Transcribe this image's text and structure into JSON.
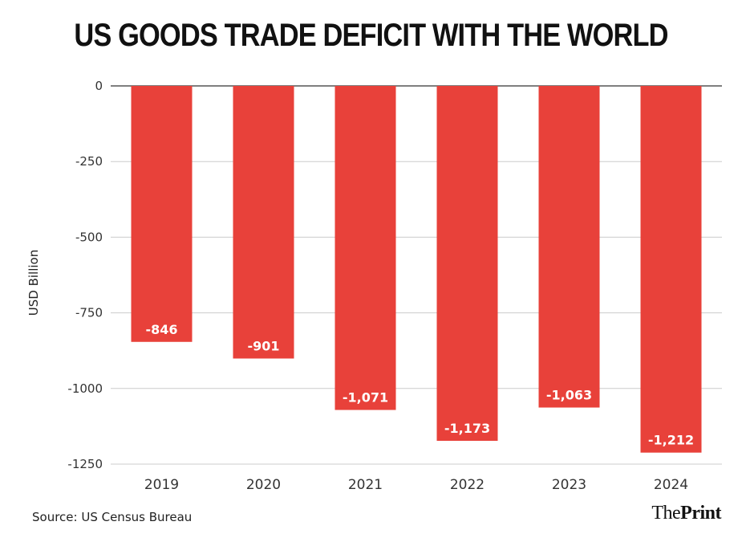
{
  "chart_data": {
    "type": "bar",
    "title": "US GOODS TRADE DEFICIT WITH THE WORLD",
    "xlabel": "",
    "ylabel": "USD Billion",
    "categories": [
      "2019",
      "2020",
      "2021",
      "2022",
      "2023",
      "2024"
    ],
    "values": [
      -846,
      -901,
      -1071,
      -1173,
      -1063,
      -1212
    ],
    "data_labels": [
      "-846",
      "-901",
      "-1,071",
      "-1,173",
      "-1,063",
      "-1,212"
    ],
    "ylim": [
      -1250,
      0
    ],
    "yticks": [
      0,
      -250,
      -500,
      -750,
      -1000,
      -1250
    ],
    "ytick_labels": [
      "0",
      "-250",
      "-500",
      "-750",
      "-1000",
      "-1250"
    ],
    "bar_color": "#e8413a",
    "grid": true
  },
  "footer": {
    "source": "Source: US Census Bureau",
    "brand_part1": "The",
    "brand_part2": "Print"
  }
}
